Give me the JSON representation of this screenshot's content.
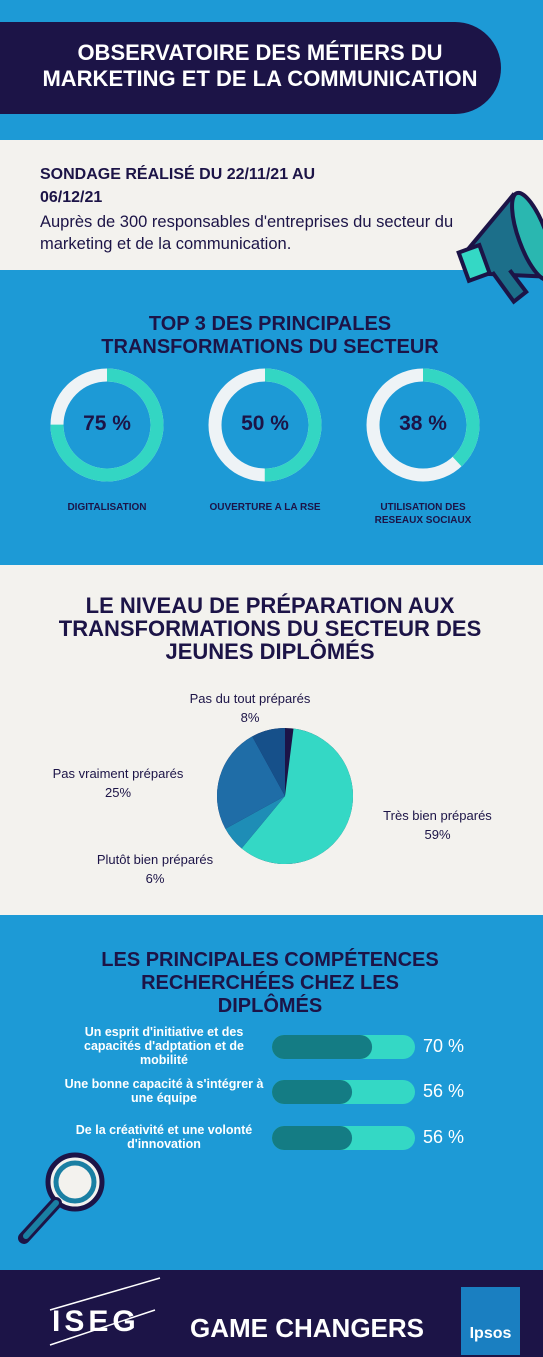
{
  "header": {
    "title": "OBSERVATOIRE DES MÉTIERS DU MARKETING ET DE LA COMMUNICATION"
  },
  "survey": {
    "dates": "SONDAGE RÉALISÉ DU 22/11/21 AU 06/12/21",
    "description": "Auprès de 300 responsables d'entreprises du secteur du marketing et de la communication."
  },
  "chart_data": [
    {
      "type": "donut",
      "title": "TOP 3 DES PRINCIPALES TRANSFORMATIONS DU SECTEUR",
      "categories": [
        "DIGITALISATION",
        "OUVERTURE A LA RSE",
        "UTILISATION DES RESEAUX SOCIAUX"
      ],
      "values": [
        75,
        50,
        38
      ],
      "value_labels": [
        "75 %",
        "50 %",
        "38 %"
      ],
      "color": "#33d6c3",
      "track_color": "#eef3f6"
    },
    {
      "type": "pie",
      "title": "LE NIVEAU DE PRÉPARATION AUX TRANSFORMATIONS DU SECTEUR DES JEUNES DIPLÔMÉS",
      "categories": [
        "Très bien préparés",
        "Plutôt bien préparés",
        "Pas vraiment préparés",
        "Pas du tout préparés"
      ],
      "values": [
        59,
        6,
        25,
        8
      ],
      "value_labels": [
        "59%",
        "6%",
        "25%",
        "8%"
      ],
      "colors": [
        "#34d8c5",
        "#1e8db6",
        "#1f6da7",
        "#16508a"
      ]
    },
    {
      "type": "bar",
      "title": "LES PRINCIPALES COMPÉTENCES RECHERCHÉES CHEZ LES DIPLÔMÉS",
      "categories": [
        "Un esprit d'initiative et des capacités d'adptation et de mobilité",
        "Une bonne capacité à s'intégrer à une équipe",
        "De la créativité et une volonté d'innovation"
      ],
      "values": [
        70,
        56,
        56
      ],
      "value_labels": [
        "70 %",
        "56 %",
        "56 %"
      ],
      "xlim": [
        0,
        100
      ],
      "color": "#147c84",
      "track_color": "#34d8c5"
    }
  ],
  "footer": {
    "brand": "ISEG",
    "tagline": "GAME CHANGERS",
    "partner": "Ipsos"
  }
}
